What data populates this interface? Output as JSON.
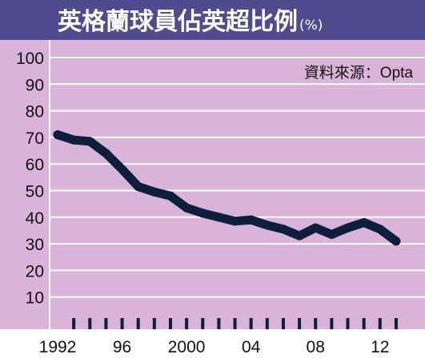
{
  "colors": {
    "title_bg": "#4f4b8e",
    "title_text": "#ffffff",
    "plot_bg": "#d9b4d8",
    "grid": "#ffffff",
    "line": "#0d1f3d",
    "tick_text": "#111111"
  },
  "chart_data": {
    "type": "line",
    "title": "英格蘭球員佔英超比例",
    "title_unit": "(%)",
    "source": "資料來源：Opta",
    "xlabel": "",
    "ylabel": "",
    "ylim": [
      0,
      100
    ],
    "yticks": [
      10,
      20,
      30,
      40,
      50,
      60,
      70,
      80,
      90,
      100
    ],
    "xlim": [
      1992,
      2013.5
    ],
    "xtick_labels": [
      {
        "x": 1992,
        "label": "1992"
      },
      {
        "x": 1996,
        "label": "96"
      },
      {
        "x": 2000,
        "label": "2000"
      },
      {
        "x": 2004,
        "label": "04"
      },
      {
        "x": 2008,
        "label": "08"
      },
      {
        "x": 2012,
        "label": "12"
      }
    ],
    "xtick_marks": [
      1993,
      1994,
      1995,
      1996,
      1997,
      1998,
      1999,
      2000,
      2001,
      2002,
      2003,
      2004,
      2005,
      2006,
      2007,
      2008,
      2009,
      2010,
      2011,
      2012,
      2013
    ],
    "grid": true,
    "series": [
      {
        "name": "",
        "x": [
          1992,
          1993,
          1994,
          1995,
          1996,
          1997,
          1998,
          1999,
          2000,
          2001,
          2002,
          2003,
          2004,
          2005,
          2006,
          2007,
          2008,
          2009,
          2010,
          2011,
          2012,
          2013
        ],
        "values": [
          71,
          69,
          68.5,
          64,
          58,
          51.5,
          49.5,
          48,
          43.5,
          41.5,
          40,
          38.5,
          39,
          37,
          35.5,
          33,
          36,
          33.5,
          36,
          38,
          35.5,
          31
        ]
      }
    ]
  }
}
